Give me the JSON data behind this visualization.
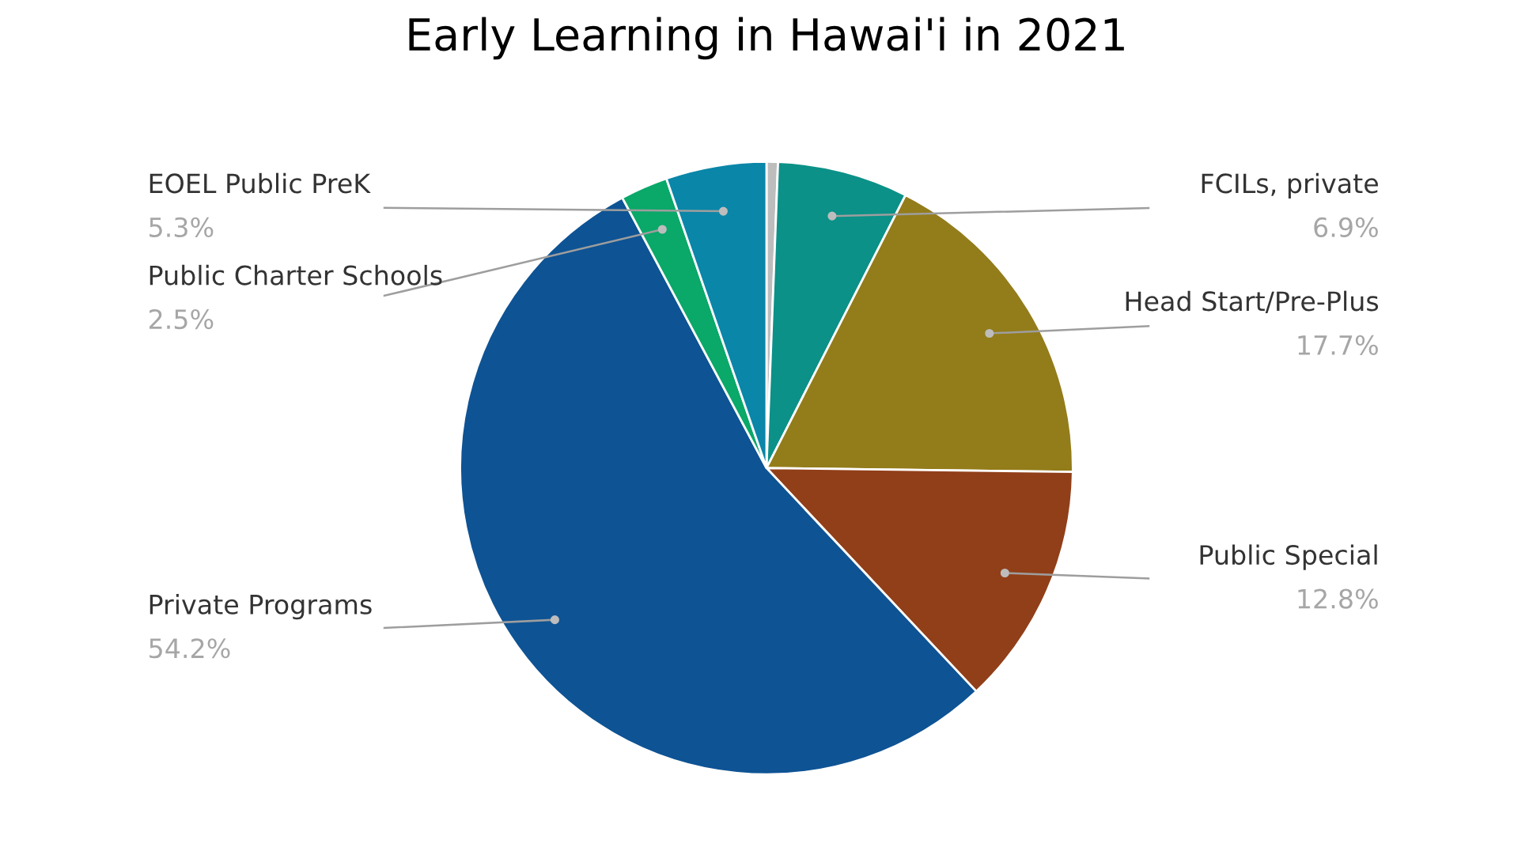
{
  "chart_data": {
    "type": "pie",
    "title": "Early Learning in Hawai'i in 2021",
    "categories": [
      null,
      "FCILs, private",
      "Head Start/Pre-Plus",
      "Public Special",
      "Private Programs",
      "Public Charter Schools",
      "EOEL Public PreK"
    ],
    "values": [
      0.6,
      6.9,
      17.7,
      12.8,
      54.2,
      2.5,
      5.3
    ],
    "value_labels": [
      null,
      "6.9%",
      "17.7%",
      "12.8%",
      "54.2%",
      "2.5%",
      "5.3%"
    ],
    "colors": [
      "#bdbdbd",
      "#0b9188",
      "#937c1a",
      "#913f19",
      "#0e5394",
      "#0aa869",
      "#0a86a8"
    ],
    "legend": false
  }
}
